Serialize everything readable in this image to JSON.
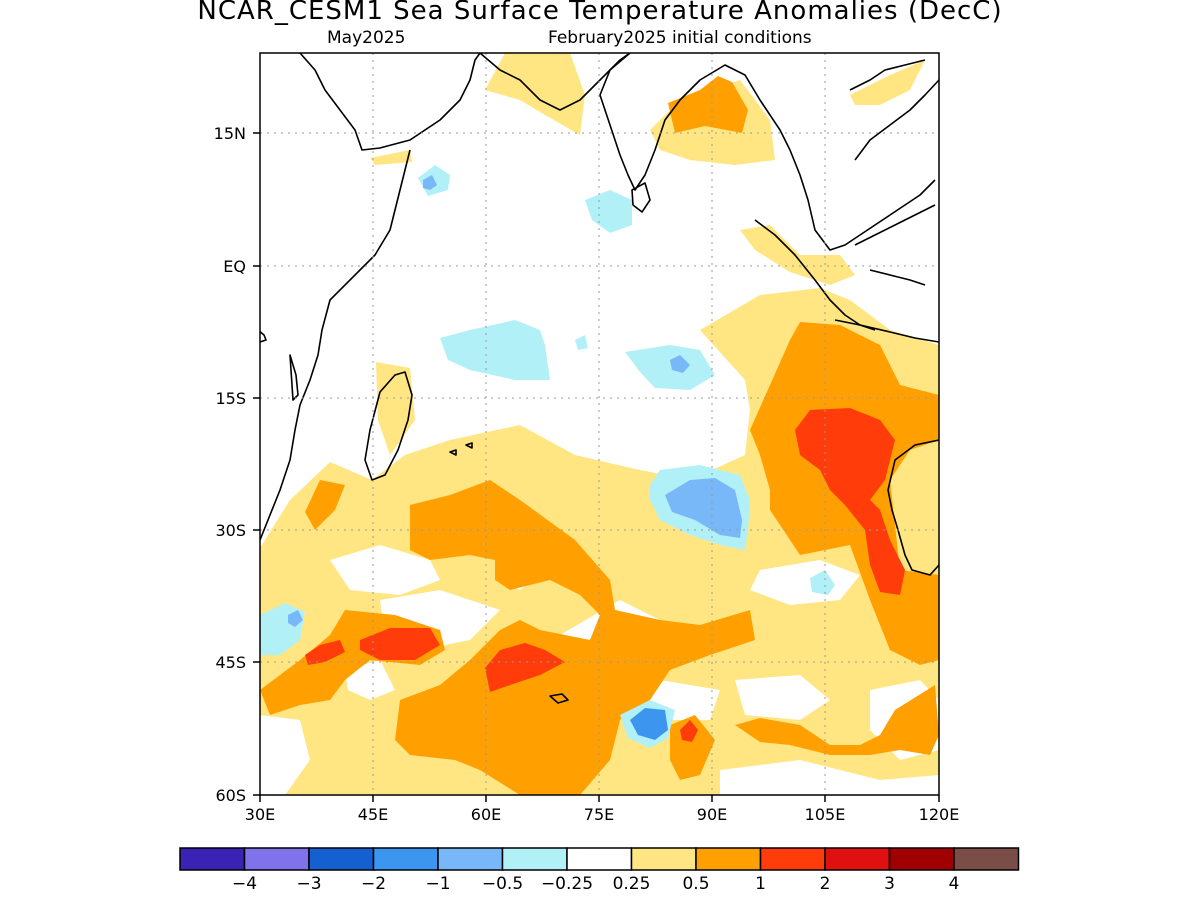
{
  "title": "NCAR_CESM1 Sea Surface Temperature Anomalies (DecC)",
  "subtitle_left": "May2025",
  "subtitle_right": "February2025 initial conditions",
  "map": {
    "lon_range": [
      30,
      120
    ],
    "lat_range": [
      -60,
      24
    ],
    "x_ticks": [
      "30E",
      "45E",
      "60E",
      "75E",
      "90E",
      "105E",
      "120E"
    ],
    "y_ticks": [
      "15N",
      "EQ",
      "15S",
      "30S",
      "45S",
      "60S"
    ],
    "grid": "dotted"
  },
  "colorbar": {
    "colors": [
      "#3a22b4",
      "#7f72ea",
      "#1460d0",
      "#3c96f0",
      "#78b8f8",
      "#b2f0f8",
      "#ffffff",
      "#ffe682",
      "#ffa000",
      "#ff3c0a",
      "#e01010",
      "#a00000",
      "#7a4e46"
    ],
    "labels": [
      "−4",
      "−3",
      "−2",
      "−1",
      "−0.5",
      "−0.25",
      "0.25",
      "0.5",
      "1",
      "2",
      "3",
      "4"
    ]
  }
}
